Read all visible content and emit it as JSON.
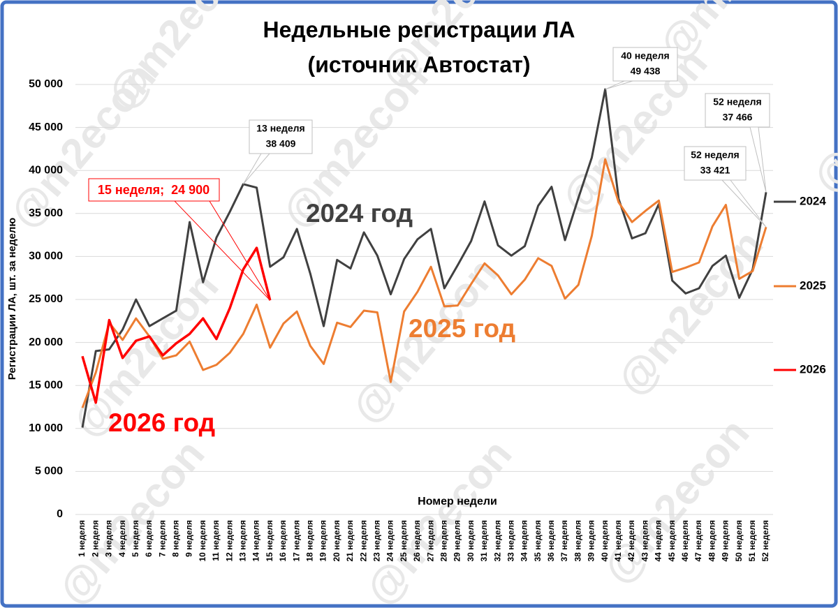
{
  "chart_data": {
    "type": "line",
    "title_lines": [
      "Недельные регистрации ЛА",
      "(источник Автостат)"
    ],
    "y_label": "Регистрации ЛА, шт. за неделю",
    "x_label": "Номер недели",
    "watermark": "@m2econ",
    "categories": [
      "1 неделя",
      "2 неделя",
      "3 неделя",
      "4 неделя",
      "5 неделя",
      "6 неделя",
      "7 неделя",
      "8 неделя",
      "9 неделя",
      "10 неделя",
      "11 неделя",
      "12 неделя",
      "13 неделя",
      "14 неделя",
      "15 неделя",
      "16 неделя",
      "17 неделя",
      "18 неделя",
      "19 неделя",
      "20 неделя",
      "21 неделя",
      "22 неделя",
      "23 неделя",
      "24 неделя",
      "25 неделя",
      "26 неделя",
      "27 неделя",
      "28 неделя",
      "29 неделя",
      "30 неделя",
      "31 неделя",
      "32 неделя",
      "33 неделя",
      "34 неделя",
      "35 неделя",
      "36 неделя",
      "37 неделя",
      "38 неделя",
      "39 неделя",
      "40 неделя",
      "41 неделя",
      "42 неделя",
      "43 неделя",
      "44 неделя",
      "45 неделя",
      "46 неделя",
      "47 неделя",
      "48 неделя",
      "49 неделя",
      "50 неделя",
      "51 неделя",
      "52 неделя"
    ],
    "series": [
      {
        "name": "2024",
        "color": "#404040",
        "values": [
          10100,
          19000,
          19200,
          21500,
          25000,
          21900,
          22800,
          23700,
          34000,
          27000,
          32200,
          35200,
          38409,
          38000,
          28800,
          29900,
          33200,
          28000,
          21900,
          29600,
          28600,
          32800,
          30100,
          25600,
          29700,
          32000,
          33200,
          26300,
          29000,
          31800,
          36400,
          31300,
          30100,
          31200,
          35900,
          38100,
          31900,
          36800,
          41500,
          49438,
          36700,
          32100,
          32700,
          36100,
          27200,
          25700,
          26300,
          28900,
          30100,
          25200,
          28500,
          37466
        ]
      },
      {
        "name": "2025",
        "color": "#ed7d31",
        "values": [
          12400,
          16500,
          22300,
          20300,
          22800,
          20700,
          18100,
          18500,
          20100,
          16800,
          17400,
          18800,
          21000,
          24400,
          19400,
          22200,
          23600,
          19600,
          17500,
          22300,
          21800,
          23700,
          23500,
          15400,
          23600,
          25900,
          28800,
          24200,
          24300,
          26800,
          29200,
          27800,
          25600,
          27300,
          29800,
          28900,
          25100,
          26700,
          32400,
          41300,
          36300,
          34000,
          35300,
          36500,
          28200,
          28700,
          29300,
          33500,
          36000,
          27400,
          28300,
          33421
        ]
      },
      {
        "name": "2026",
        "color": "#ff0000",
        "values": [
          18400,
          13000,
          22600,
          18200,
          20200,
          20700,
          18500,
          19900,
          21000,
          22800,
          20400,
          24000,
          28500,
          31000,
          24900,
          null,
          null,
          null,
          null,
          null,
          null,
          null,
          null,
          null,
          null,
          null,
          null,
          null,
          null,
          null,
          null,
          null,
          null,
          null,
          null,
          null,
          null,
          null,
          null,
          null,
          null,
          null,
          null,
          null,
          null,
          null,
          null,
          null,
          null,
          null,
          null,
          null
        ]
      }
    ],
    "ylim": [
      0,
      50000
    ],
    "yticks": [
      0,
      {
        "value": 5000,
        "label": "5 000"
      },
      {
        "value": 10000,
        "label": "10 000"
      },
      {
        "value": 15000,
        "label": "15 000"
      },
      {
        "value": 20000,
        "label": "20 000"
      },
      {
        "value": 25000,
        "label": "25 000"
      },
      {
        "value": 30000,
        "label": "30 000"
      },
      {
        "value": 35000,
        "label": "35 000"
      },
      {
        "value": 40000,
        "label": "40 000"
      },
      {
        "value": 45000,
        "label": "45 000"
      },
      {
        "value": 50000,
        "label": "50 000"
      }
    ],
    "grid": true,
    "callouts": [
      {
        "lines": [
          "13 неделя",
          "38 409"
        ]
      },
      {
        "lines": [
          "40 неделя",
          "49 438"
        ]
      },
      {
        "lines": [
          "52 неделя",
          "37 466"
        ]
      },
      {
        "lines": [
          "52 неделя",
          "33 421"
        ]
      }
    ],
    "red_callout": "15 неделя;  24 900",
    "series_labels": [
      "2024 год",
      "2025 год",
      "2026 год"
    ]
  }
}
